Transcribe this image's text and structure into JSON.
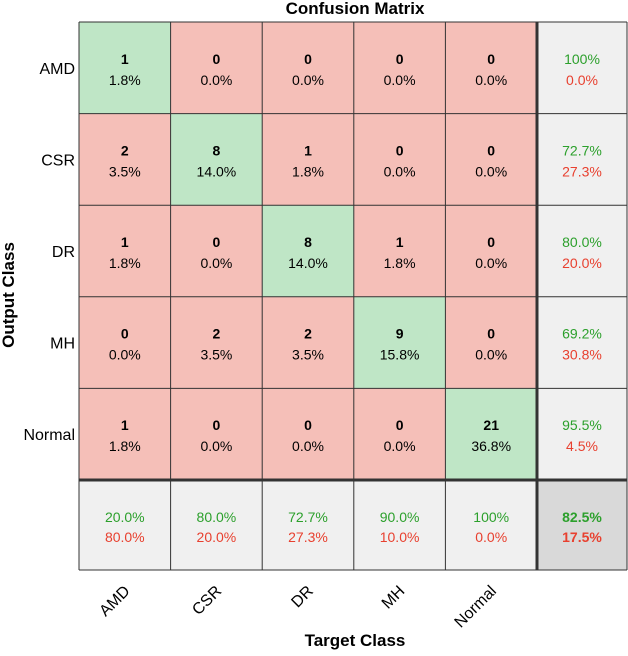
{
  "chart_data": {
    "type": "heatmap",
    "title": "Confusion Matrix",
    "xlabel": "Target Class",
    "ylabel": "Output Class",
    "classes": [
      "AMD",
      "CSR",
      "DR",
      "MH",
      "Normal"
    ],
    "counts": [
      [
        1,
        0,
        0,
        0,
        0
      ],
      [
        2,
        8,
        1,
        0,
        0
      ],
      [
        1,
        0,
        8,
        1,
        0
      ],
      [
        0,
        2,
        2,
        9,
        0
      ],
      [
        1,
        0,
        0,
        0,
        21
      ]
    ],
    "percents": [
      [
        "1.8%",
        "0.0%",
        "0.0%",
        "0.0%",
        "0.0%"
      ],
      [
        "3.5%",
        "14.0%",
        "1.8%",
        "0.0%",
        "0.0%"
      ],
      [
        "1.8%",
        "0.0%",
        "14.0%",
        "1.8%",
        "0.0%"
      ],
      [
        "0.0%",
        "3.5%",
        "3.5%",
        "15.8%",
        "0.0%"
      ],
      [
        "1.8%",
        "0.0%",
        "0.0%",
        "0.0%",
        "36.8%"
      ]
    ],
    "row_summary": [
      {
        "correct": "100%",
        "incorrect": "0.0%"
      },
      {
        "correct": "72.7%",
        "incorrect": "27.3%"
      },
      {
        "correct": "80.0%",
        "incorrect": "20.0%"
      },
      {
        "correct": "69.2%",
        "incorrect": "30.8%"
      },
      {
        "correct": "95.5%",
        "incorrect": "4.5%"
      }
    ],
    "col_summary": [
      {
        "correct": "20.0%",
        "incorrect": "80.0%"
      },
      {
        "correct": "80.0%",
        "incorrect": "20.0%"
      },
      {
        "correct": "72.7%",
        "incorrect": "27.3%"
      },
      {
        "correct": "90.0%",
        "incorrect": "10.0%"
      },
      {
        "correct": "100%",
        "incorrect": "0.0%"
      }
    ],
    "overall": {
      "correct": "82.5%",
      "incorrect": "17.5%"
    },
    "colors": {
      "correct_cell": "#bfe6c6",
      "incorrect_cell": "#f5bfb8",
      "summary_cell": "#f0f0f0",
      "overall_cell": "#d9d9d9",
      "correct_text": "#2ca02c",
      "incorrect_text": "#e8402f",
      "grid_line": "#333333"
    }
  }
}
